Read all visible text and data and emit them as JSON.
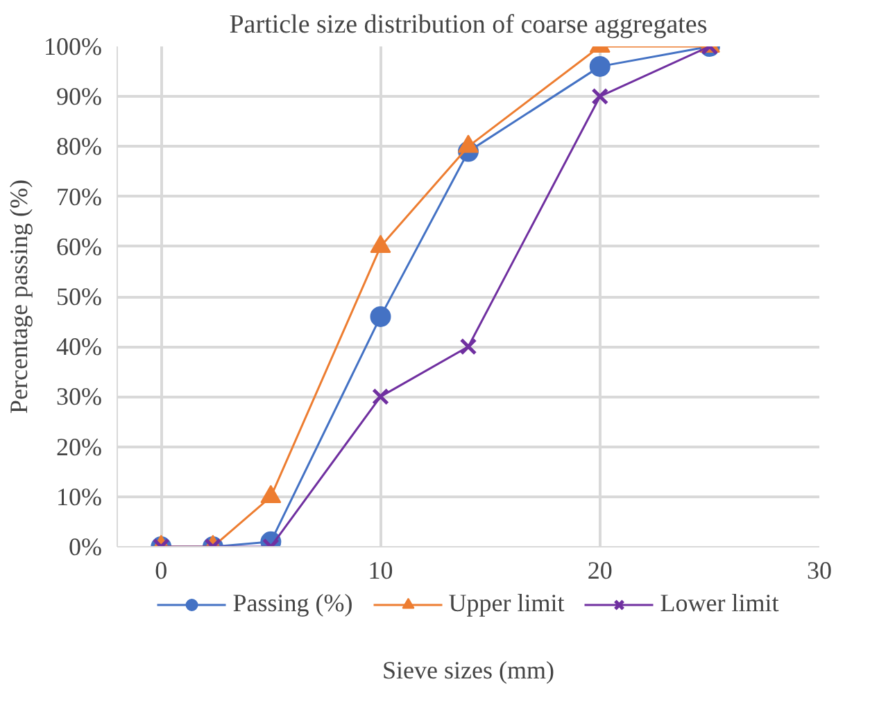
{
  "chart_data": {
    "type": "line",
    "title": "Particle size distribution of coarse aggregates",
    "xlabel": "Sieve sizes (mm)",
    "ylabel": "Percentage passing (%)",
    "x": [
      0,
      2.36,
      5,
      10,
      14,
      20,
      25
    ],
    "series": [
      {
        "name": "Passing (%)",
        "color": "#4472c4",
        "marker": "circle",
        "values": [
          0,
          0,
          1,
          46,
          79,
          96,
          100
        ]
      },
      {
        "name": "Upper limit",
        "color": "#ed7d31",
        "marker": "triangle",
        "values": [
          0,
          0,
          10,
          60,
          80,
          100,
          100
        ]
      },
      {
        "name": "Lower limit",
        "color": "#7030a0",
        "marker": "cross",
        "values": [
          0,
          0,
          0,
          30,
          40,
          90,
          100
        ]
      }
    ],
    "xlim": [
      -2,
      30
    ],
    "xticks": [
      0,
      10,
      20,
      30
    ],
    "ylim": [
      0,
      100
    ],
    "yticks": [
      {
        "value": 0,
        "label": "0%"
      },
      {
        "value": 10,
        "label": "10%"
      },
      {
        "value": 20,
        "label": "20%"
      },
      {
        "value": 30,
        "label": "30%"
      },
      {
        "value": 40,
        "label": "40%"
      },
      {
        "value": 50,
        "label": "50%"
      },
      {
        "value": 60,
        "label": "60%"
      },
      {
        "value": 70,
        "label": "70%"
      },
      {
        "value": 80,
        "label": "80%"
      },
      {
        "value": 90,
        "label": "90%"
      },
      {
        "value": 100,
        "label": "100%"
      }
    ],
    "grid": true,
    "legend": "bottom",
    "line_style": "solid"
  }
}
